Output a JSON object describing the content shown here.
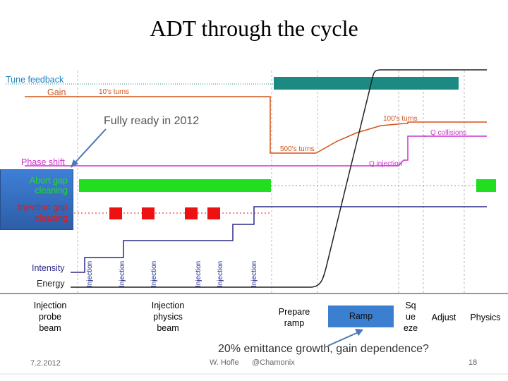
{
  "title": "ADT through the cycle",
  "rows": {
    "tune_feedback": "Tune feedback",
    "gain": "Gain",
    "phase_shift": "Phase shift",
    "abort_gap_line1": "Abort gap",
    "abort_gap_line2": "cleaning",
    "injection_gap_line1": "Injection gap",
    "injection_gap_line2": "cleaning",
    "intensity": "Intensity",
    "energy": "Energy"
  },
  "gain_annotations": {
    "tens_turns": "10's turns",
    "five_hundreds_turns": "500's turns",
    "hundreds_turns": "100's turns",
    "q_collisions": "Q collisions",
    "q_injection": "Q injection"
  },
  "callouts": {
    "fully_ready": "Fully ready in 2012",
    "emittance": "20% emittance growth, gain dependence?"
  },
  "injection_markers": [
    "Injection",
    "Injection",
    "Injection",
    "Injection",
    "Injection",
    "Injection"
  ],
  "phases": {
    "injection_probe": [
      "Injection",
      "probe",
      "beam"
    ],
    "injection_physics": [
      "Injection",
      "physics",
      "beam"
    ],
    "prepare_ramp": [
      "Prepare",
      "ramp"
    ],
    "ramp": "Ramp",
    "squeeze": [
      "Sq",
      "ue",
      "eze"
    ],
    "adjust": "Adjust",
    "physics": "Physics"
  },
  "footer": {
    "date": "7.2.2012",
    "author": "W. Hofle",
    "venue": "@Chamonix",
    "page": "18"
  },
  "colors": {
    "tune": "#1a8a82",
    "gain": "#d2521c",
    "phase": "#cc33cc",
    "abort": "#22dd22",
    "injgap": "#ee1111",
    "intensity": "#2b2a88",
    "energy": "#222222",
    "ramp_box": "#3a7fd0"
  }
}
